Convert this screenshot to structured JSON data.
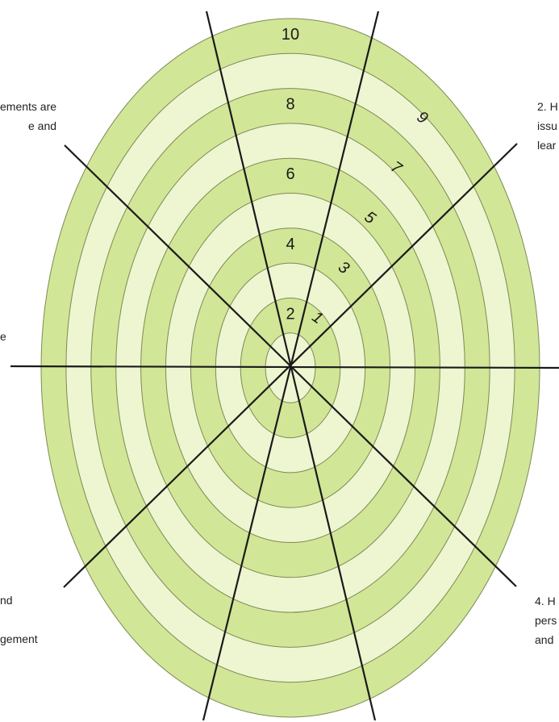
{
  "wheel": {
    "ring_count": 10,
    "colors": {
      "dark_band": "#d2e697",
      "light_band": "#eef5d1",
      "ring_stroke": "#7d8a55",
      "axis_line": "#1a1a1a",
      "text": "#1a1a1a"
    },
    "scale_left_labels": [
      "2",
      "4",
      "6",
      "8",
      "10"
    ],
    "scale_right_labels": [
      "1",
      "3",
      "5",
      "7",
      "9"
    ]
  },
  "side_labels": {
    "top_left": [
      "ements are",
      "e and"
    ],
    "top_right": [
      "2. H",
      "issu",
      "lear"
    ],
    "mid_left": [
      "e"
    ],
    "bottom_left": [
      "nd",
      "",
      "gement"
    ],
    "bottom_right": [
      "4. H",
      "pers",
      "and"
    ]
  }
}
